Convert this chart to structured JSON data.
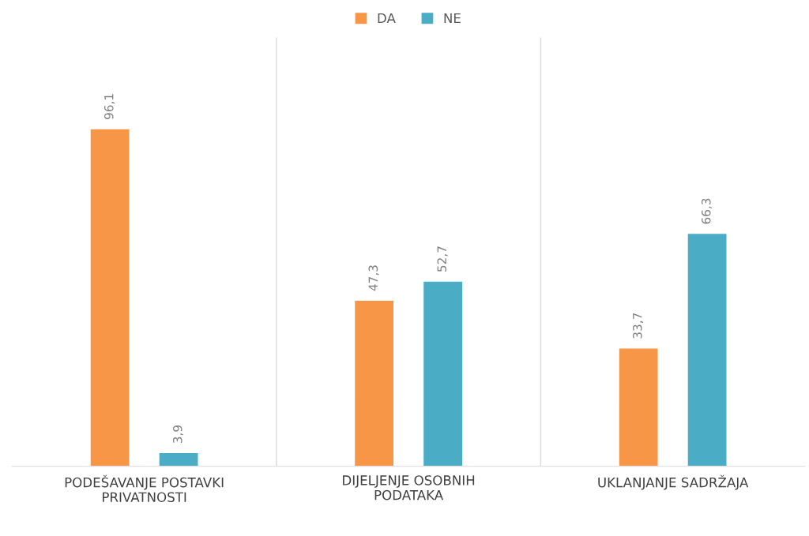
{
  "chart_data": {
    "type": "bar",
    "categories": [
      "PODEŠAVANJE POSTAVKI PRIVATNOSTI",
      "DIJELJENJE OSOBNIH PODATAKA",
      "UKLANJANJE SADRŽAJA"
    ],
    "series": [
      {
        "name": "DA",
        "color": "#f79646",
        "values": [
          96.1,
          47.3,
          33.7
        ],
        "value_labels": [
          "96,1",
          "47,3",
          "33,7"
        ]
      },
      {
        "name": "NE",
        "color": "#4bacc6",
        "values": [
          3.9,
          52.7,
          66.3
        ],
        "value_labels": [
          "3,9",
          "52,7",
          "66,3"
        ]
      }
    ],
    "legend": "top",
    "grid": "x"
  }
}
